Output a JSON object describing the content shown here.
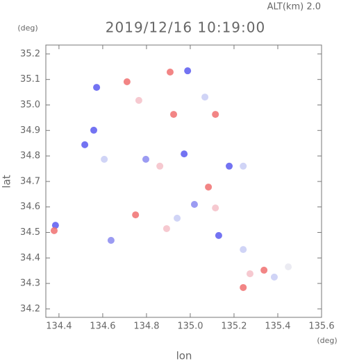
{
  "chart_data": {
    "type": "scatter",
    "title": "2019/12/16 10:19:00",
    "subtitle": "ALT(km) 2.0",
    "y_unit": "(deg)",
    "x_unit": "(deg)",
    "x_label": "lon",
    "y_label": "lat",
    "xlim": [
      134.34,
      135.6
    ],
    "ylim": [
      34.167,
      35.235
    ],
    "xticks": [
      134.4,
      134.6,
      134.8,
      {
        "value": 135,
        "label": "135.0"
      },
      135.2,
      135.4,
      135.6
    ],
    "yticks": [
      34.2,
      34.3,
      34.4,
      34.5,
      34.6,
      34.7,
      34.8,
      34.9,
      {
        "value": 35,
        "label": "35.0"
      },
      35.1,
      35.2
    ],
    "x": [
      134.572,
      134.711,
      134.908,
      134.988,
      135.067,
      135.115,
      134.924,
      134.765,
      134.559,
      134.518,
      134.607,
      134.797,
      134.861,
      134.972,
      135.178,
      135.242,
      135.083,
      135.019,
      135.115,
      134.75,
      134.892,
      134.94,
      134.384,
      134.378,
      134.638,
      135.13,
      135.242,
      135.273,
      135.337,
      135.384,
      135.242,
      135.448
    ],
    "values": [
      35.069,
      35.091,
      35.129,
      35.134,
      35.031,
      34.963,
      34.963,
      35.018,
      34.901,
      34.844,
      34.787,
      34.787,
      34.76,
      34.808,
      34.76,
      34.76,
      34.678,
      34.61,
      34.596,
      34.569,
      34.515,
      34.556,
      34.528,
      34.507,
      34.469,
      34.488,
      34.433,
      34.338,
      34.352,
      34.325,
      34.284,
      34.365
    ],
    "colors": [
      "#5a5af0",
      "#f07070",
      "#f07070",
      "#5a5af0",
      "#c8ccf4",
      "#f07070",
      "#f07070",
      "#f4c0c8",
      "#5a5af0",
      "#5a5af0",
      "#c8ccf4",
      "#8a8af0",
      "#f4c0c8",
      "#5a5af0",
      "#5a5af0",
      "#c8ccf4",
      "#f07070",
      "#8a8af0",
      "#f4c0c8",
      "#f07070",
      "#f4c0c8",
      "#c8ccf4",
      "#5a5af0",
      "#f07070",
      "#8a8af0",
      "#5a5af0",
      "#c8ccf4",
      "#f4c0c8",
      "#f07070",
      "#c8ccf4",
      "#f07070",
      "#e8e8f0"
    ]
  }
}
